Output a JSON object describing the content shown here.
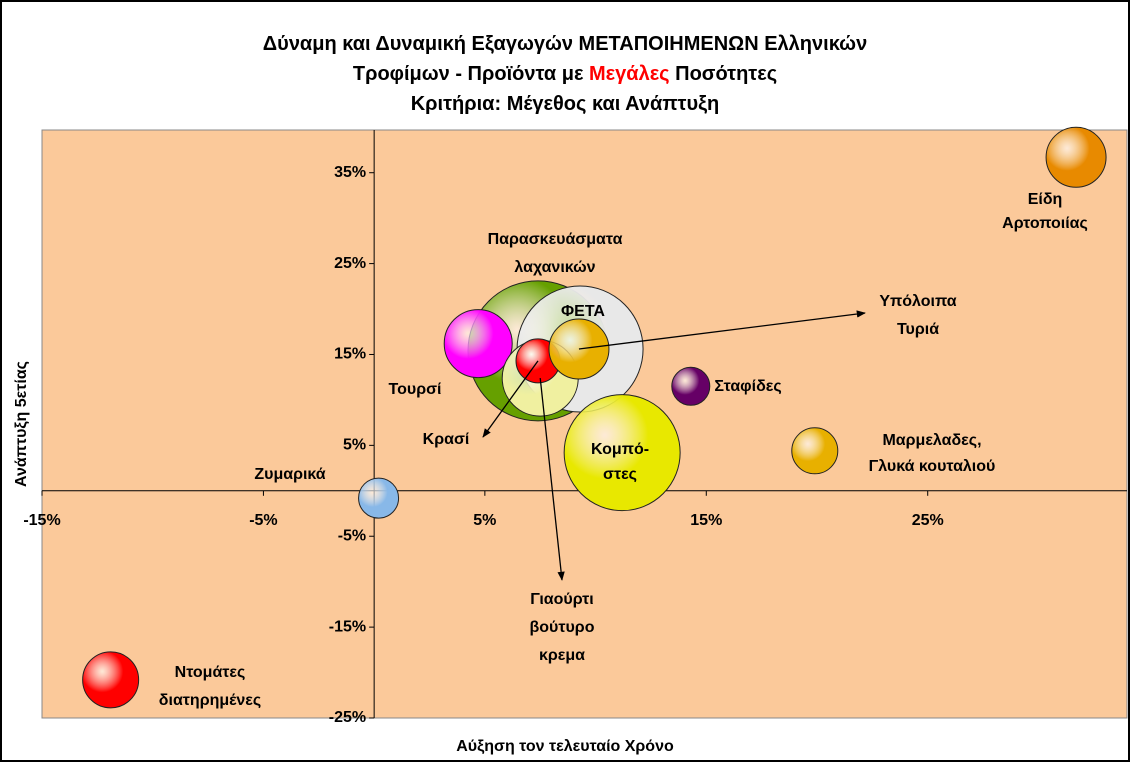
{
  "chart_data": {
    "type": "bubble",
    "title_lines": [
      [
        "Δύναμη και Δυναμική Εξαγωγών ΜΕΤΑΠΟΙΗΜΕΝΩΝ Ελληνικών"
      ],
      [
        "Τροφίμων -  Προϊόντα με ",
        "Μεγάλες",
        " Ποσότητες"
      ],
      [
        "Κριτήρια: Μέγεθος και Ανάπτυξη"
      ]
    ],
    "title_highlight_color": "#ff0000",
    "x_label": "Αύξηση τον τελευταίο Χρόνο",
    "y_label": "Ανάπτυξη 5ετίας",
    "background": "#fbc99a",
    "labels": [
      [
        "Παρασκευάσματα",
        "λαχανικών"
      ],
      [
        "ΦΕΤΑ"
      ],
      [
        "Τουρσί"
      ],
      [
        "Γιαούρτι",
        "βούτυρο",
        "κρεμα"
      ],
      [
        "Κρασί"
      ],
      [
        "Υπόλοιπα",
        "Τυριά"
      ],
      [
        "Είδη",
        "Αρτοποιίας"
      ],
      [
        "Σταφίδες"
      ],
      [
        "Κομπό-",
        "στες"
      ],
      [
        "Μαρμελαδες,",
        "Γλυκά κουταλιού"
      ],
      [
        "Ζυμαρικά"
      ],
      [
        "Ντομάτες",
        "διατηρημένες"
      ]
    ],
    "x": [
      7.4,
      9.3,
      4.7,
      7.5,
      7.4,
      9.25,
      31.7,
      14.3,
      11.2,
      19.9,
      0.2,
      -11.9
    ],
    "y": [
      15.4,
      15.6,
      16.2,
      12.4,
      14.3,
      15.6,
      36.7,
      11.5,
      4.2,
      4.4,
      -0.8,
      -20.8
    ],
    "sizes": [
      70,
      63,
      34,
      38,
      22,
      30,
      30,
      19,
      58,
      23,
      20,
      28
    ],
    "colors": [
      "#66a000",
      "#e8e8e8",
      "#ff00ff",
      "#f0f0a0",
      "#ff0000",
      "#e8b000",
      "#e88a00",
      "#660066",
      "#e8e800",
      "#e8b000",
      "#88b8e8",
      "#ff0000"
    ],
    "xlim": [
      -15,
      34
    ],
    "ylim": [
      -25,
      39.7
    ],
    "xticks": [
      {
        "value": -15,
        "label": "-15%"
      },
      {
        "value": -5,
        "label": "-5%"
      },
      {
        "value": 5,
        "label": "5%"
      },
      {
        "value": 15,
        "label": "15%"
      },
      {
        "value": 25,
        "label": "25%"
      }
    ],
    "yticks": [
      {
        "value": -25,
        "label": "-25%"
      },
      {
        "value": -15,
        "label": "-15%"
      },
      {
        "value": -5,
        "label": "-5%"
      },
      {
        "value": 5,
        "label": "5%"
      },
      {
        "value": 15,
        "label": "15%"
      },
      {
        "value": 25,
        "label": "25%"
      },
      {
        "value": 35,
        "label": "35%"
      }
    ]
  }
}
